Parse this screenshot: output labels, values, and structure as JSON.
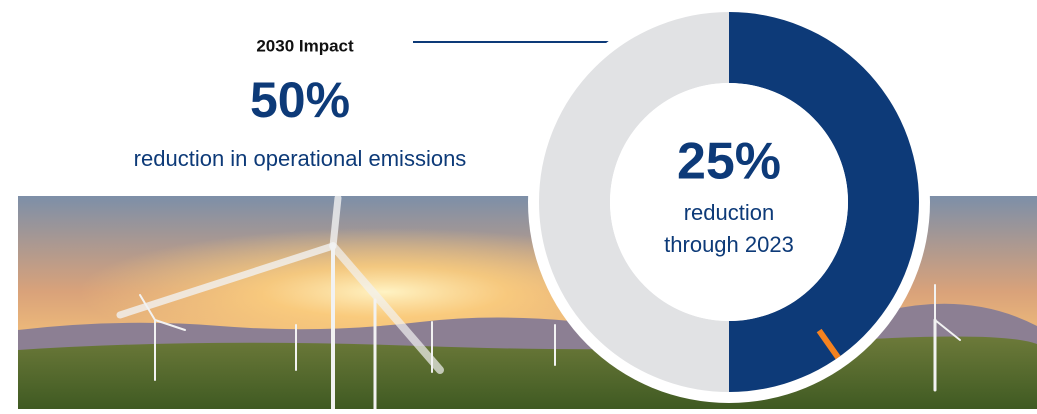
{
  "chart_data": {
    "type": "donut",
    "target": {
      "heading": "2030 Impact",
      "value": 50,
      "value_label": "50%",
      "caption": "reduction in operational emissions",
      "color": "#0d3a78"
    },
    "progress": {
      "value_label": "25%",
      "caption": [
        "reduction",
        "through 2023"
      ],
      "color": "#f5821f"
    },
    "track_color": "#e1e2e4"
  }
}
